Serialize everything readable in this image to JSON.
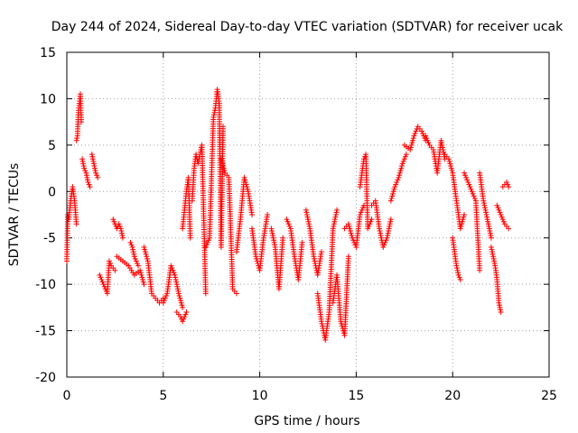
{
  "chart_data": {
    "type": "scatter",
    "title": "Day 244 of 2024, Sidereal Day-to-day VTEC variation (SDTVAR) for receiver ucak",
    "xlabel": "GPS time / hours",
    "ylabel": "SDTVAR / TECUs",
    "xlim": [
      0,
      25
    ],
    "ylim": [
      -20,
      15
    ],
    "xticks": [
      0,
      5,
      10,
      15,
      20,
      25
    ],
    "yticks": [
      -20,
      -15,
      -10,
      -5,
      0,
      5,
      10,
      15
    ],
    "grid": true,
    "marker": "plus",
    "marker_color": "#ff0000",
    "series": [
      {
        "name": "SDTVAR",
        "segments": [
          {
            "x": [
              0.0,
              0.05,
              0.1,
              0.15,
              0.2,
              0.3,
              0.4,
              0.5
            ],
            "y": [
              -7.5,
              -2.5,
              -3.0,
              -2.0,
              -1.0,
              0.5,
              -1.0,
              -3.5
            ]
          },
          {
            "x": [
              0.5,
              0.55,
              0.6,
              0.65,
              0.7,
              0.75
            ],
            "y": [
              5.5,
              6.0,
              8.5,
              9.5,
              10.5,
              7.5
            ]
          },
          {
            "x": [
              0.8,
              0.9,
              1.0,
              1.1,
              1.2
            ],
            "y": [
              3.5,
              2.5,
              2.0,
              1.0,
              0.5
            ]
          },
          {
            "x": [
              1.3,
              1.4,
              1.5,
              1.6
            ],
            "y": [
              4.0,
              3.0,
              2.0,
              1.5
            ]
          },
          {
            "x": [
              1.7,
              1.8,
              1.9,
              2.0,
              2.1,
              2.2,
              2.3,
              2.5
            ],
            "y": [
              -9.0,
              -9.5,
              -10.0,
              -10.5,
              -11.0,
              -7.5,
              -8.0,
              -8.5
            ]
          },
          {
            "x": [
              2.4,
              2.5,
              2.6,
              2.7,
              2.8,
              2.9
            ],
            "y": [
              -3.0,
              -3.5,
              -4.0,
              -3.5,
              -4.0,
              -5.0
            ]
          },
          {
            "x": [
              2.6,
              2.9,
              3.2,
              3.5,
              3.8,
              4.0
            ],
            "y": [
              -7.0,
              -7.5,
              -8.0,
              -9.0,
              -8.5,
              -10.0
            ]
          },
          {
            "x": [
              3.3,
              3.4,
              3.5,
              3.7
            ],
            "y": [
              -5.5,
              -6.0,
              -7.0,
              -8.0
            ]
          },
          {
            "x": [
              4.0,
              4.2,
              4.4,
              4.6,
              4.8,
              5.0
            ],
            "y": [
              -6.0,
              -7.5,
              -11.0,
              -11.5,
              -12.0,
              -11.5
            ]
          },
          {
            "x": [
              5.0,
              5.2,
              5.4,
              5.6,
              5.8,
              6.0
            ],
            "y": [
              -12.0,
              -11.0,
              -8.0,
              -9.0,
              -11.0,
              -12.5
            ]
          },
          {
            "x": [
              5.7,
              5.9,
              6.0,
              6.2
            ],
            "y": [
              -13.0,
              -13.5,
              -14.0,
              -13.0
            ]
          },
          {
            "x": [
              6.0,
              6.1,
              6.2,
              6.3,
              6.4
            ],
            "y": [
              -4.0,
              -2.0,
              0.0,
              1.5,
              -5.0
            ]
          },
          {
            "x": [
              6.5,
              6.6,
              6.7,
              6.8,
              7.0,
              7.2
            ],
            "y": [
              -1.0,
              2.5,
              4.0,
              3.0,
              5.0,
              -11.0
            ]
          },
          {
            "x": [
              7.2,
              7.4,
              7.6,
              7.7,
              7.8,
              7.9,
              8.0,
              8.1
            ],
            "y": [
              -6.0,
              -5.0,
              8.0,
              9.0,
              11.0,
              9.5,
              -6.0,
              7.0
            ]
          },
          {
            "x": [
              8.0,
              8.2,
              8.4,
              8.6,
              8.8
            ],
            "y": [
              3.5,
              2.0,
              1.5,
              -10.5,
              -11.0
            ]
          },
          {
            "x": [
              8.8,
              9.0,
              9.2,
              9.4,
              9.6
            ],
            "y": [
              -6.5,
              -3.0,
              1.5,
              0.0,
              -2.5
            ]
          },
          {
            "x": [
              9.6,
              9.8,
              10.0,
              10.2,
              10.4
            ],
            "y": [
              -4.0,
              -7.0,
              -8.5,
              -5.0,
              -2.5
            ]
          },
          {
            "x": [
              10.6,
              10.8,
              11.0,
              11.2
            ],
            "y": [
              -4.0,
              -6.0,
              -10.5,
              -5.0
            ]
          },
          {
            "x": [
              11.4,
              11.6,
              11.8,
              12.0,
              12.2
            ],
            "y": [
              -3.0,
              -4.0,
              -7.0,
              -9.5,
              -5.5
            ]
          },
          {
            "x": [
              12.4,
              12.6,
              12.8,
              13.0,
              13.2
            ],
            "y": [
              -2.0,
              -4.0,
              -7.0,
              -9.0,
              -6.5
            ]
          },
          {
            "x": [
              13.0,
              13.2,
              13.4,
              13.6,
              13.8,
              14.0
            ],
            "y": [
              -11.0,
              -14.0,
              -16.0,
              -13.0,
              -4.0,
              -2.0
            ]
          },
          {
            "x": [
              13.8,
              14.0,
              14.2,
              14.4,
              14.6
            ],
            "y": [
              -12.0,
              -9.0,
              -14.0,
              -15.5,
              -7.0
            ]
          },
          {
            "x": [
              14.4,
              14.6,
              14.8,
              15.0,
              15.2,
              15.4
            ],
            "y": [
              -4.0,
              -3.5,
              -5.0,
              -6.0,
              -2.5,
              -1.5
            ]
          },
          {
            "x": [
              15.2,
              15.3,
              15.4,
              15.5,
              15.6,
              15.8
            ],
            "y": [
              0.5,
              2.0,
              3.5,
              4.0,
              -4.0,
              -3.0
            ]
          },
          {
            "x": [
              15.8,
              16.0,
              16.2,
              16.4,
              16.6,
              16.8
            ],
            "y": [
              -1.5,
              -1.0,
              -4.0,
              -6.0,
              -5.0,
              -3.0
            ]
          },
          {
            "x": [
              16.8,
              17.0,
              17.2,
              17.4,
              17.6
            ],
            "y": [
              -1.0,
              0.5,
              1.5,
              3.0,
              4.0
            ]
          },
          {
            "x": [
              17.5,
              17.8,
              18.0,
              18.2,
              18.4,
              18.6
            ],
            "y": [
              5.0,
              4.5,
              6.0,
              7.0,
              6.5,
              5.5
            ]
          },
          {
            "x": [
              18.6,
              18.8,
              19.0,
              19.2,
              19.4,
              19.6
            ],
            "y": [
              6.0,
              5.0,
              4.5,
              2.0,
              5.5,
              3.5
            ]
          },
          {
            "x": [
              19.6,
              19.8,
              20.0,
              20.2,
              20.4,
              20.6
            ],
            "y": [
              4.0,
              3.5,
              2.0,
              -1.0,
              -4.0,
              -2.5
            ]
          },
          {
            "x": [
              20.0,
              20.1,
              20.2,
              20.3,
              20.4
            ],
            "y": [
              -5.0,
              -6.5,
              -8.0,
              -9.0,
              -9.5
            ]
          },
          {
            "x": [
              20.6,
              20.8,
              21.0,
              21.2,
              21.4
            ],
            "y": [
              2.0,
              1.0,
              0.0,
              -1.0,
              -8.5
            ]
          },
          {
            "x": [
              21.4,
              21.6,
              21.8,
              22.0
            ],
            "y": [
              2.0,
              -1.0,
              -3.0,
              -5.0
            ]
          },
          {
            "x": [
              22.0,
              22.1,
              22.2,
              22.3,
              22.4,
              22.5
            ],
            "y": [
              -6.0,
              -7.0,
              -8.0,
              -9.5,
              -12.0,
              -13.0
            ]
          },
          {
            "x": [
              22.3,
              22.5,
              22.7,
              22.9
            ],
            "y": [
              -1.5,
              -2.5,
              -3.5,
              -4.0
            ]
          },
          {
            "x": [
              22.6,
              22.8,
              22.9
            ],
            "y": [
              0.5,
              1.0,
              0.5
            ]
          }
        ]
      }
    ]
  }
}
